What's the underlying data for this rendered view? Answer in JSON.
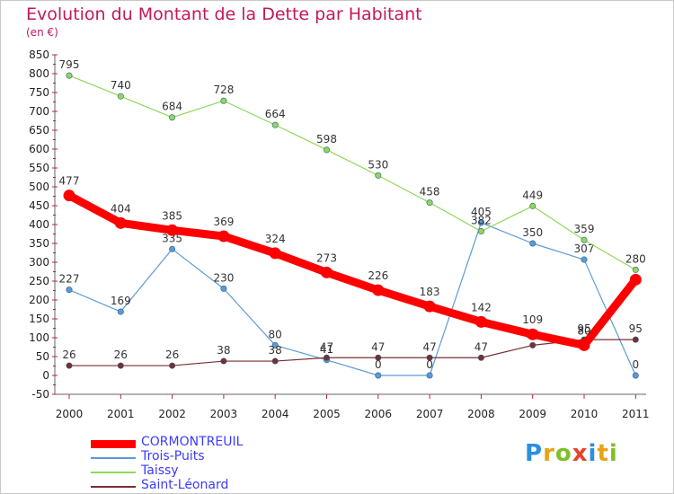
{
  "title": "Evolution du Montant de la Dette par Habitant",
  "subtitle": "(en €)",
  "logo_text": "Proxiti",
  "chart_data": {
    "type": "line",
    "categories": [
      "2000",
      "2001",
      "2002",
      "2003",
      "2004",
      "2005",
      "2006",
      "2007",
      "2008",
      "2009",
      "2010",
      "2011"
    ],
    "ylim": [
      -50,
      850
    ],
    "yticks": [
      -50,
      0,
      50,
      100,
      150,
      200,
      250,
      300,
      350,
      400,
      450,
      500,
      550,
      600,
      650,
      700,
      750,
      800,
      850
    ],
    "grid": false,
    "legend_position": "bottom-left",
    "series": [
      {
        "name": "CORMONTREUIL",
        "color": "#ff0000",
        "values": [
          477,
          404,
          385,
          369,
          324,
          273,
          226,
          183,
          142,
          109,
          80,
          254
        ],
        "labels": [
          "477",
          "404",
          "385",
          "369",
          "324",
          "273",
          "226",
          "183",
          "142",
          "109",
          "80",
          ""
        ]
      },
      {
        "name": "Trois-Puits",
        "color": "#5b9bd5",
        "values": [
          227,
          169,
          335,
          230,
          80,
          41,
          0,
          0,
          405,
          350,
          307,
          0
        ],
        "labels": [
          "227",
          "169",
          "335",
          "230",
          "80",
          "41",
          "0",
          "0",
          "405",
          "350",
          "307",
          "0"
        ]
      },
      {
        "name": "Taissy",
        "color": "#8fd85a",
        "values": [
          795,
          740,
          684,
          728,
          664,
          598,
          530,
          458,
          382,
          449,
          359,
          280
        ],
        "labels": [
          "795",
          "740",
          "684",
          "728",
          "664",
          "598",
          "530",
          "458",
          "382",
          "449",
          "359",
          "280"
        ]
      },
      {
        "name": "Saint-Léonard",
        "color": "#7a2e2e",
        "values": [
          26,
          26,
          26,
          38,
          38,
          47,
          47,
          47,
          47,
          80,
          95,
          95
        ],
        "labels": [
          "26",
          "26",
          "26",
          "38",
          "38",
          "47",
          "47",
          "47",
          "47",
          "80",
          "95",
          "95"
        ]
      }
    ]
  }
}
